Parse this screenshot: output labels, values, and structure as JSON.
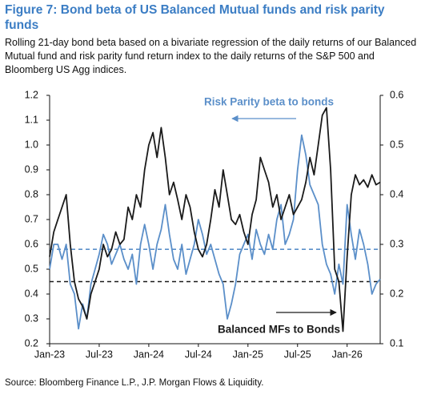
{
  "chart_data": {
    "type": "line",
    "title": "Figure 7: Bond beta of US Balanced Mutual funds and risk parity funds",
    "subtitle": "Rolling 21-day bond beta based on a bivariate regression of the daily returns of our Balanced Mutual fund and risk parity fund return index to the daily returns of the S&P 500 and Bloomberg US Agg indices.",
    "source": "Source: Bloomberg Finance L.P., J.P. Morgan Flows & Liquidity.",
    "x": [
      0,
      0.5,
      1,
      1.5,
      2,
      2.5,
      3,
      3.5,
      4,
      4.5,
      5,
      5.5,
      6,
      6.5,
      7,
      7.5,
      8,
      8.5,
      9,
      9.5,
      10,
      10.5,
      11,
      11.5,
      12,
      12.5,
      13,
      13.5,
      14,
      14.5,
      15,
      15.5,
      16,
      16.5,
      17,
      17.5,
      18,
      18.5,
      19,
      19.5,
      20,
      20.5,
      21,
      21.5,
      22,
      22.5,
      23,
      23.5,
      24,
      24.5,
      25,
      25.5,
      26,
      26.5,
      27,
      27.5,
      28,
      28.5,
      29,
      29.5,
      30,
      30.5,
      31,
      31.5,
      32,
      32.5,
      33,
      33.5,
      34,
      34.5,
      35,
      35.5,
      36,
      36.5,
      37,
      37.5,
      38,
      38.5,
      39,
      39.5,
      40
    ],
    "xlim": [
      0,
      40
    ],
    "xticks": [
      {
        "value": 0,
        "label": "Jan-23"
      },
      {
        "value": 6,
        "label": "Jul-23"
      },
      {
        "value": 12,
        "label": "Jan-24"
      },
      {
        "value": 18,
        "label": "Jul-24"
      },
      {
        "value": 24,
        "label": "Jan-25"
      },
      {
        "value": 30,
        "label": "Jul-25"
      },
      {
        "value": 36,
        "label": "Jan-26"
      }
    ],
    "ylim": [
      0.2,
      1.2
    ],
    "yticks": [
      0.2,
      0.3,
      0.4,
      0.5,
      0.6,
      0.7,
      0.8,
      0.9,
      {
        "value": 1,
        "label": "1.0"
      },
      1.1,
      1.2
    ],
    "y2lim": [
      0.1,
      0.6
    ],
    "y2ticks": [
      0.1,
      0.2,
      0.3,
      0.4,
      0.5,
      0.6
    ],
    "series": [
      {
        "name": "Balanced MFs to Bonds",
        "color": "#1a1a1a",
        "values": [
          0.55,
          0.65,
          0.7,
          0.75,
          0.8,
          0.6,
          0.45,
          0.38,
          0.35,
          0.3,
          0.4,
          0.45,
          0.5,
          0.6,
          0.55,
          0.58,
          0.65,
          0.6,
          0.62,
          0.75,
          0.7,
          0.8,
          0.75,
          0.9,
          1.0,
          1.05,
          0.95,
          1.07,
          0.95,
          0.8,
          0.85,
          0.78,
          0.7,
          0.8,
          0.75,
          0.65,
          0.58,
          0.55,
          0.6,
          0.7,
          0.82,
          0.75,
          0.9,
          0.8,
          0.7,
          0.68,
          0.72,
          0.65,
          0.6,
          0.72,
          0.78,
          0.95,
          0.9,
          0.85,
          0.75,
          0.8,
          0.7,
          0.75,
          0.8,
          0.72,
          0.75,
          0.78,
          0.85,
          0.95,
          0.88,
          1.0,
          1.12,
          1.15,
          0.9,
          0.5,
          0.45,
          0.25,
          0.55,
          0.8,
          0.88,
          0.84,
          0.86,
          0.83,
          0.88,
          0.84,
          0.85
        ]
      },
      {
        "name": "Risk Parity beta to bonds",
        "color": "#5b8fc9",
        "axis": "y2",
        "values": [
          0.25,
          0.3,
          0.3,
          0.27,
          0.3,
          0.22,
          0.2,
          0.13,
          0.18,
          0.15,
          0.22,
          0.25,
          0.28,
          0.32,
          0.3,
          0.26,
          0.28,
          0.3,
          0.27,
          0.25,
          0.28,
          0.22,
          0.3,
          0.34,
          0.3,
          0.25,
          0.3,
          0.33,
          0.38,
          0.32,
          0.27,
          0.25,
          0.3,
          0.24,
          0.27,
          0.3,
          0.35,
          0.32,
          0.28,
          0.3,
          0.27,
          0.24,
          0.22,
          0.15,
          0.18,
          0.22,
          0.28,
          0.3,
          0.32,
          0.27,
          0.33,
          0.3,
          0.28,
          0.32,
          0.29,
          0.35,
          0.38,
          0.3,
          0.32,
          0.35,
          0.45,
          0.52,
          0.48,
          0.42,
          0.4,
          0.38,
          0.3,
          0.26,
          0.24,
          0.2,
          0.26,
          0.22,
          0.38,
          0.32,
          0.27,
          0.33,
          0.3,
          0.26,
          0.2,
          0.22,
          0.23
        ]
      }
    ],
    "hlines": [
      {
        "value": 0.45,
        "color": "#1a1a1a"
      },
      {
        "value": 0.29,
        "axis": "y2",
        "color": "#5b8fc9"
      }
    ]
  }
}
